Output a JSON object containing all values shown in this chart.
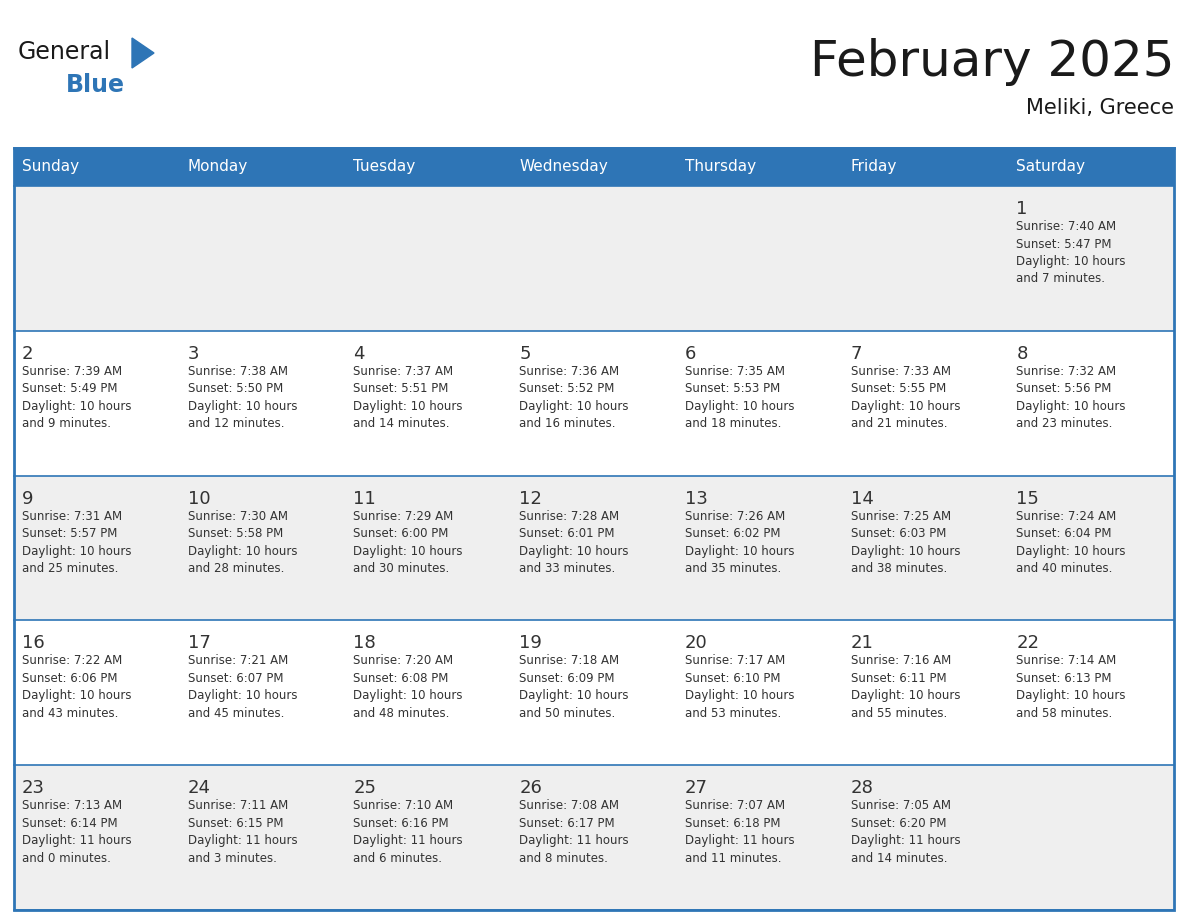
{
  "title": "February 2025",
  "subtitle": "Meliki, Greece",
  "header_bg": "#2E75B6",
  "header_text_color": "#FFFFFF",
  "cell_bg_odd": "#EFEFEF",
  "cell_bg_even": "#FFFFFF",
  "border_color": "#2E75B6",
  "day_headers": [
    "Sunday",
    "Monday",
    "Tuesday",
    "Wednesday",
    "Thursday",
    "Friday",
    "Saturday"
  ],
  "title_color": "#1A1A1A",
  "subtitle_color": "#1A1A1A",
  "date_color": "#333333",
  "text_color": "#333333",
  "logo_general_color": "#1A1A1A",
  "logo_blue_color": "#2E75B6",
  "weeks": [
    [
      {
        "day": null,
        "info": ""
      },
      {
        "day": null,
        "info": ""
      },
      {
        "day": null,
        "info": ""
      },
      {
        "day": null,
        "info": ""
      },
      {
        "day": null,
        "info": ""
      },
      {
        "day": null,
        "info": ""
      },
      {
        "day": 1,
        "info": "Sunrise: 7:40 AM\nSunset: 5:47 PM\nDaylight: 10 hours\nand 7 minutes."
      }
    ],
    [
      {
        "day": 2,
        "info": "Sunrise: 7:39 AM\nSunset: 5:49 PM\nDaylight: 10 hours\nand 9 minutes."
      },
      {
        "day": 3,
        "info": "Sunrise: 7:38 AM\nSunset: 5:50 PM\nDaylight: 10 hours\nand 12 minutes."
      },
      {
        "day": 4,
        "info": "Sunrise: 7:37 AM\nSunset: 5:51 PM\nDaylight: 10 hours\nand 14 minutes."
      },
      {
        "day": 5,
        "info": "Sunrise: 7:36 AM\nSunset: 5:52 PM\nDaylight: 10 hours\nand 16 minutes."
      },
      {
        "day": 6,
        "info": "Sunrise: 7:35 AM\nSunset: 5:53 PM\nDaylight: 10 hours\nand 18 minutes."
      },
      {
        "day": 7,
        "info": "Sunrise: 7:33 AM\nSunset: 5:55 PM\nDaylight: 10 hours\nand 21 minutes."
      },
      {
        "day": 8,
        "info": "Sunrise: 7:32 AM\nSunset: 5:56 PM\nDaylight: 10 hours\nand 23 minutes."
      }
    ],
    [
      {
        "day": 9,
        "info": "Sunrise: 7:31 AM\nSunset: 5:57 PM\nDaylight: 10 hours\nand 25 minutes."
      },
      {
        "day": 10,
        "info": "Sunrise: 7:30 AM\nSunset: 5:58 PM\nDaylight: 10 hours\nand 28 minutes."
      },
      {
        "day": 11,
        "info": "Sunrise: 7:29 AM\nSunset: 6:00 PM\nDaylight: 10 hours\nand 30 minutes."
      },
      {
        "day": 12,
        "info": "Sunrise: 7:28 AM\nSunset: 6:01 PM\nDaylight: 10 hours\nand 33 minutes."
      },
      {
        "day": 13,
        "info": "Sunrise: 7:26 AM\nSunset: 6:02 PM\nDaylight: 10 hours\nand 35 minutes."
      },
      {
        "day": 14,
        "info": "Sunrise: 7:25 AM\nSunset: 6:03 PM\nDaylight: 10 hours\nand 38 minutes."
      },
      {
        "day": 15,
        "info": "Sunrise: 7:24 AM\nSunset: 6:04 PM\nDaylight: 10 hours\nand 40 minutes."
      }
    ],
    [
      {
        "day": 16,
        "info": "Sunrise: 7:22 AM\nSunset: 6:06 PM\nDaylight: 10 hours\nand 43 minutes."
      },
      {
        "day": 17,
        "info": "Sunrise: 7:21 AM\nSunset: 6:07 PM\nDaylight: 10 hours\nand 45 minutes."
      },
      {
        "day": 18,
        "info": "Sunrise: 7:20 AM\nSunset: 6:08 PM\nDaylight: 10 hours\nand 48 minutes."
      },
      {
        "day": 19,
        "info": "Sunrise: 7:18 AM\nSunset: 6:09 PM\nDaylight: 10 hours\nand 50 minutes."
      },
      {
        "day": 20,
        "info": "Sunrise: 7:17 AM\nSunset: 6:10 PM\nDaylight: 10 hours\nand 53 minutes."
      },
      {
        "day": 21,
        "info": "Sunrise: 7:16 AM\nSunset: 6:11 PM\nDaylight: 10 hours\nand 55 minutes."
      },
      {
        "day": 22,
        "info": "Sunrise: 7:14 AM\nSunset: 6:13 PM\nDaylight: 10 hours\nand 58 minutes."
      }
    ],
    [
      {
        "day": 23,
        "info": "Sunrise: 7:13 AM\nSunset: 6:14 PM\nDaylight: 11 hours\nand 0 minutes."
      },
      {
        "day": 24,
        "info": "Sunrise: 7:11 AM\nSunset: 6:15 PM\nDaylight: 11 hours\nand 3 minutes."
      },
      {
        "day": 25,
        "info": "Sunrise: 7:10 AM\nSunset: 6:16 PM\nDaylight: 11 hours\nand 6 minutes."
      },
      {
        "day": 26,
        "info": "Sunrise: 7:08 AM\nSunset: 6:17 PM\nDaylight: 11 hours\nand 8 minutes."
      },
      {
        "day": 27,
        "info": "Sunrise: 7:07 AM\nSunset: 6:18 PM\nDaylight: 11 hours\nand 11 minutes."
      },
      {
        "day": 28,
        "info": "Sunrise: 7:05 AM\nSunset: 6:20 PM\nDaylight: 11 hours\nand 14 minutes."
      },
      {
        "day": null,
        "info": ""
      }
    ]
  ]
}
